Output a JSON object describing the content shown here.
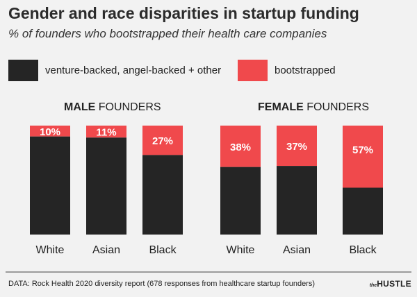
{
  "title": "Gender and race disparities in startup funding",
  "subtitle": "% of founders who bootstrapped their health care companies",
  "legend": [
    {
      "label": "venture-backed, angel-backed + other",
      "color": "#252525"
    },
    {
      "label": "bootstrapped",
      "color": "#f0494c"
    }
  ],
  "panels": [
    {
      "title_bold": "MALE",
      "title_rest": " FOUNDERS"
    },
    {
      "title_bold": "FEMALE",
      "title_rest": " FOUNDERS"
    }
  ],
  "chart_data": [
    {
      "type": "bar",
      "stacked": true,
      "normalized_to": 100,
      "categories": [
        "White",
        "Asian",
        "Black"
      ],
      "series": [
        {
          "name": "bootstrapped",
          "values": [
            10,
            11,
            27
          ],
          "labels": [
            "10%",
            "11%",
            "27%"
          ]
        },
        {
          "name": "venture-backed, angel-backed + other",
          "values": [
            90,
            89,
            73
          ]
        }
      ]
    },
    {
      "type": "bar",
      "stacked": true,
      "normalized_to": 100,
      "categories": [
        "White",
        "Asian",
        "Black"
      ],
      "series": [
        {
          "name": "bootstrapped",
          "values": [
            38,
            37,
            57
          ],
          "labels": [
            "38%",
            "37%",
            "57%"
          ]
        },
        {
          "name": "venture-backed, angel-backed + other",
          "values": [
            62,
            63,
            43
          ]
        }
      ]
    }
  ],
  "source": "DATA: Rock Health 2020 diversity report (678 responses from healthcare startup founders)",
  "brand": {
    "the": "the",
    "name": "HUSTLE"
  }
}
